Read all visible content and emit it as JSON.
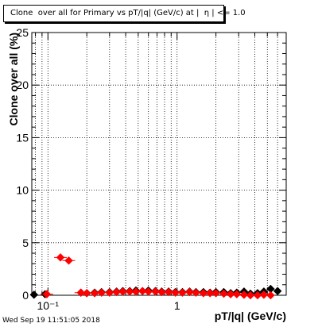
{
  "chart_data": {
    "type": "scatter",
    "title": "Clone  over all for Primary vs pT/|q| (GeV/c) at |  η | <= 1.0",
    "xlabel": "pT/|q| (GeV/c)",
    "ylabel": "Clone  over all (%)",
    "xscale": "log",
    "xlim": [
      0.075,
      7.0
    ],
    "ylim": [
      0,
      25
    ],
    "grid": true,
    "x_tick_labels": [
      "10⁻¹",
      "1"
    ],
    "y_tick_labels": [
      "0",
      "5",
      "10",
      "15",
      "20",
      "25"
    ],
    "series": [
      {
        "color": "#000000",
        "marker": "diamond",
        "x": [
          0.078,
          0.095,
          0.18,
          0.2,
          0.23,
          0.26,
          0.3,
          0.34,
          0.38,
          0.43,
          0.48,
          0.54,
          0.6,
          0.68,
          0.76,
          0.86,
          0.97,
          1.1,
          1.25,
          1.4,
          1.6,
          1.8,
          2.0,
          2.3,
          2.6,
          2.9,
          3.3,
          3.7,
          4.2,
          4.7,
          5.3,
          6.0
        ],
        "y": [
          0.05,
          0.1,
          0.25,
          0.2,
          0.25,
          0.3,
          0.3,
          0.35,
          0.4,
          0.4,
          0.45,
          0.4,
          0.45,
          0.4,
          0.35,
          0.35,
          0.3,
          0.3,
          0.35,
          0.3,
          0.3,
          0.25,
          0.3,
          0.3,
          0.2,
          0.25,
          0.35,
          0.15,
          0.2,
          0.35,
          0.6,
          0.4
        ]
      },
      {
        "color": "#ff0000",
        "marker": "diamond",
        "x": [
          0.098,
          0.125,
          0.145,
          0.18,
          0.2,
          0.23,
          0.26,
          0.3,
          0.34,
          0.38,
          0.43,
          0.48,
          0.54,
          0.6,
          0.68,
          0.76,
          0.86,
          0.97,
          1.1,
          1.25,
          1.4,
          1.6,
          1.8,
          2.0,
          2.3,
          2.6,
          2.9,
          3.3,
          3.7,
          4.2,
          4.7,
          5.3
        ],
        "y": [
          0.1,
          3.6,
          3.3,
          0.25,
          0.2,
          0.2,
          0.25,
          0.25,
          0.3,
          0.35,
          0.35,
          0.35,
          0.4,
          0.35,
          0.35,
          0.3,
          0.3,
          0.25,
          0.25,
          0.3,
          0.25,
          0.2,
          0.2,
          0.2,
          0.15,
          0.1,
          0.1,
          0.05,
          0.0,
          0.0,
          0.05,
          0.0
        ]
      }
    ]
  },
  "footer": {
    "timestamp": "Wed Sep 19 11:51:05 2018"
  }
}
